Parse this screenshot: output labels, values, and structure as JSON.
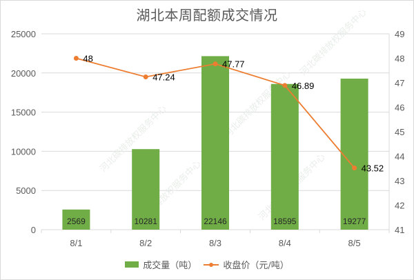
{
  "chart": {
    "title": "湖北本周配额成交情况",
    "legend": {
      "bar_label": "成交量（吨）",
      "line_label": "收盘价（元/吨）"
    },
    "watermark": "河北碳排放权服务中心",
    "colors": {
      "bar": "#70ad47",
      "line": "#ed7d31",
      "grid": "#d9d9d9",
      "text": "#595959"
    }
  },
  "chart_data": {
    "type": "bar+line",
    "title": "湖北本周配额成交情况",
    "categories": [
      "8/1",
      "8/2",
      "8/3",
      "8/4",
      "8/5"
    ],
    "series": [
      {
        "name": "成交量（吨）",
        "type": "bar",
        "axis": "left",
        "values": [
          2569,
          10281,
          22146,
          18595,
          19277
        ],
        "color": "#70ad47"
      },
      {
        "name": "收盘价（元/吨）",
        "type": "line",
        "axis": "right",
        "values": [
          48,
          47.24,
          47.77,
          46.89,
          43.52
        ],
        "color": "#ed7d31"
      }
    ],
    "left_axis": {
      "ylim": [
        0,
        25000
      ],
      "ticks": [
        0,
        5000,
        10000,
        15000,
        20000,
        25000
      ]
    },
    "right_axis": {
      "ylim": [
        41,
        49
      ],
      "ticks": [
        41,
        42,
        43,
        44,
        45,
        46,
        47,
        48,
        49
      ]
    },
    "xlabel": "",
    "ylabel": "",
    "grid": true,
    "legend_position": "bottom"
  }
}
